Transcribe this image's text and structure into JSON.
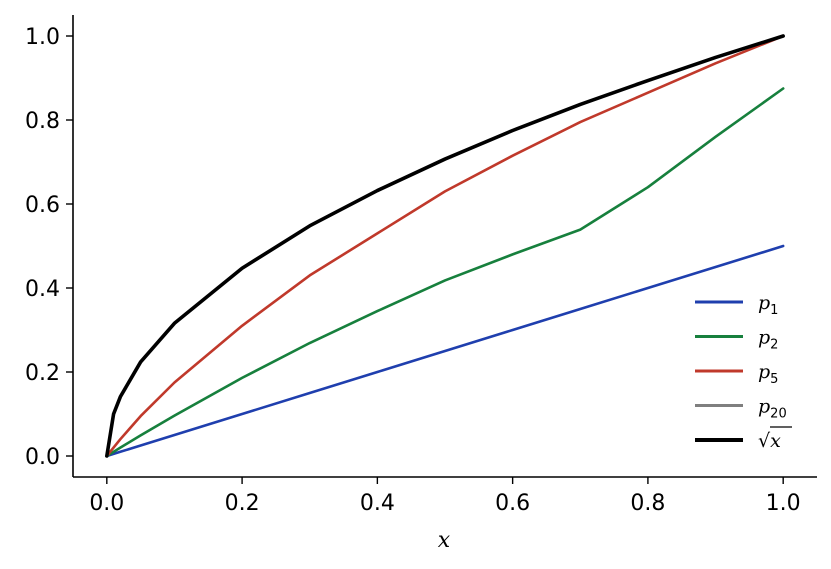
{
  "chart_data": {
    "type": "line",
    "title": "",
    "xlabel": "x",
    "ylabel": "",
    "xlim": [
      -0.05,
      1.05
    ],
    "ylim": [
      -0.05,
      1.05
    ],
    "xticks": [
      0.0,
      0.2,
      0.4,
      0.6,
      0.8,
      1.0
    ],
    "yticks": [
      0.0,
      0.2,
      0.4,
      0.6,
      0.8,
      1.0
    ],
    "xtick_labels": [
      "0.0",
      "0.2",
      "0.4",
      "0.6",
      "0.8",
      "1.0"
    ],
    "ytick_labels": [
      "0.0",
      "0.2",
      "0.4",
      "0.6",
      "0.8",
      "1.0"
    ],
    "grid": false,
    "legend_position": "lower-right",
    "x": [
      0.0,
      0.01,
      0.02,
      0.05,
      0.1,
      0.2,
      0.3,
      0.4,
      0.5,
      0.6,
      0.7,
      0.8,
      0.9,
      1.0
    ],
    "series": [
      {
        "name": "p",
        "subscript": "1",
        "color": "#1f3fae",
        "values": [
          0.0,
          0.005,
          0.01,
          0.025,
          0.05,
          0.1,
          0.15,
          0.2,
          0.25,
          0.3,
          0.35,
          0.4,
          0.45,
          0.5
        ]
      },
      {
        "name": "p",
        "subscript": "2",
        "color": "#17803d",
        "values": [
          0.0,
          0.01,
          0.02,
          0.049,
          0.096,
          0.186,
          0.269,
          0.345,
          0.418,
          0.48,
          0.539,
          0.64,
          0.76,
          0.875
        ]
      },
      {
        "name": "p",
        "subscript": "5",
        "color": "#c0392b",
        "values": [
          0.0,
          0.02,
          0.04,
          0.095,
          0.175,
          0.31,
          0.43,
          0.53,
          0.63,
          0.715,
          0.795,
          0.865,
          0.935,
          1.0
        ]
      },
      {
        "name": "p",
        "subscript": "20",
        "color": "#7f7f7f",
        "values": [
          0.0,
          0.1,
          0.141,
          0.224,
          0.316,
          0.447,
          0.548,
          0.632,
          0.707,
          0.775,
          0.837,
          0.894,
          0.949,
          1.0
        ]
      },
      {
        "name": "√x",
        "subscript": "",
        "color": "#000000",
        "values": [
          0.0,
          0.1,
          0.141,
          0.224,
          0.316,
          0.447,
          0.548,
          0.632,
          0.707,
          0.775,
          0.837,
          0.894,
          0.949,
          1.0
        ]
      }
    ]
  }
}
